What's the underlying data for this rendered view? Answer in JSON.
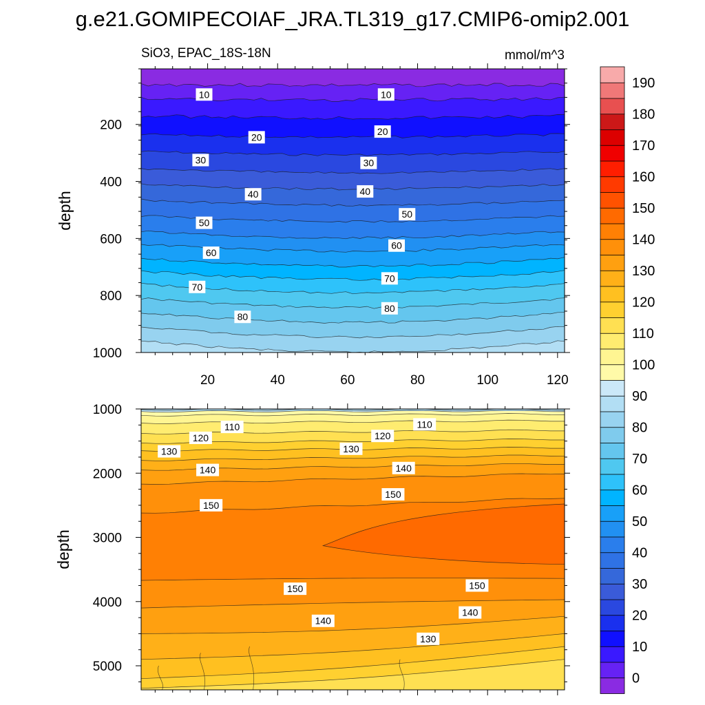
{
  "chart_data": {
    "type": "contour",
    "title": "g.e21.GOMIPECOIAF_JRA.TL319_g17.CMIP6-omip2.001",
    "subtitle_left": "SiO3, EPAC_18S-18N",
    "subtitle_right": "mmol/m^3",
    "variable": "SiO3",
    "region": "EPAC_18S-18N",
    "units": "mmol/m^3",
    "xlim": [
      1,
      122
    ],
    "x_ticks": [
      20,
      40,
      60,
      80,
      100,
      120
    ],
    "colorbar": {
      "levels": [
        0,
        5,
        10,
        15,
        20,
        25,
        30,
        35,
        40,
        45,
        50,
        55,
        60,
        65,
        70,
        75,
        80,
        85,
        90,
        95,
        100,
        105,
        110,
        115,
        120,
        125,
        130,
        135,
        140,
        145,
        150,
        155,
        160,
        165,
        170,
        175,
        180,
        185,
        190,
        195
      ],
      "colors": [
        "#8a2be2",
        "#6622f4",
        "#3a19ff",
        "#1010ff",
        "#1a30ee",
        "#2a48e0",
        "#3a5bd9",
        "#3568da",
        "#2f72e5",
        "#2a7eec",
        "#2190f2",
        "#18a0f8",
        "#00b4ff",
        "#2ec2fa",
        "#4fc8f0",
        "#64c6ee",
        "#7fcbed",
        "#98d3f0",
        "#b2def4",
        "#cbe8f8",
        "#fffaa8",
        "#fff592",
        "#ffec70",
        "#ffe052",
        "#ffd030",
        "#ffc020",
        "#ffb018",
        "#ffa010",
        "#ff900a",
        "#ff8004",
        "#ff6a00",
        "#ff5200",
        "#ff3a00",
        "#ff1e00",
        "#f00000",
        "#dc0000",
        "#cc1818",
        "#e85050",
        "#f07878",
        "#f8aaaa"
      ],
      "tick_labels": [
        0,
        10,
        20,
        30,
        40,
        50,
        60,
        70,
        80,
        90,
        100,
        110,
        120,
        130,
        140,
        150,
        160,
        170,
        180,
        190
      ]
    },
    "panels": [
      {
        "name": "upper",
        "ylabel": "depth",
        "ylim": [
          5,
          1000
        ],
        "y_ticks": [
          200,
          400,
          600,
          800,
          1000
        ],
        "x_ticks_labeled": true,
        "contour_depths": [
          {
            "level": 5,
            "depth": 60
          },
          {
            "level": 10,
            "depth": 110
          },
          {
            "level": 15,
            "depth": 170
          },
          {
            "level": 20,
            "depth": 235
          },
          {
            "level": 25,
            "depth": 295
          },
          {
            "level": 30,
            "depth": 355
          },
          {
            "level": 35,
            "depth": 410
          },
          {
            "level": 40,
            "depth": 465
          },
          {
            "level": 45,
            "depth": 520
          },
          {
            "level": 50,
            "depth": 575
          },
          {
            "level": 55,
            "depth": 620
          },
          {
            "level": 60,
            "depth": 670
          },
          {
            "level": 65,
            "depth": 715
          },
          {
            "level": 70,
            "depth": 760
          },
          {
            "level": 75,
            "depth": 810
          },
          {
            "level": 80,
            "depth": 860
          },
          {
            "level": 85,
            "depth": 910
          },
          {
            "level": 90,
            "depth": 960
          }
        ],
        "line_labels": [
          {
            "text": "10",
            "x": 19,
            "depth": 95
          },
          {
            "text": "10",
            "x": 71,
            "depth": 95
          },
          {
            "text": "20",
            "x": 34,
            "depth": 245
          },
          {
            "text": "20",
            "x": 70,
            "depth": 225
          },
          {
            "text": "30",
            "x": 18,
            "depth": 325
          },
          {
            "text": "30",
            "x": 66,
            "depth": 335
          },
          {
            "text": "40",
            "x": 33,
            "depth": 445
          },
          {
            "text": "40",
            "x": 65,
            "depth": 435
          },
          {
            "text": "50",
            "x": 19,
            "depth": 545
          },
          {
            "text": "50",
            "x": 77,
            "depth": 515
          },
          {
            "text": "60",
            "x": 21,
            "depth": 650
          },
          {
            "text": "60",
            "x": 74,
            "depth": 625
          },
          {
            "text": "70",
            "x": 17,
            "depth": 770
          },
          {
            "text": "70",
            "x": 72,
            "depth": 740
          },
          {
            "text": "80",
            "x": 30,
            "depth": 875
          },
          {
            "text": "80",
            "x": 72,
            "depth": 845
          }
        ]
      },
      {
        "name": "lower",
        "ylabel": "depth",
        "ylim": [
          1000,
          5375
        ],
        "y_ticks": [
          1000,
          2000,
          3000,
          4000,
          5000
        ],
        "x_ticks_labeled": false,
        "line_labels": [
          {
            "text": "110",
            "x": 27,
            "depth": 1280
          },
          {
            "text": "110",
            "x": 82,
            "depth": 1240
          },
          {
            "text": "120",
            "x": 18,
            "depth": 1450
          },
          {
            "text": "120",
            "x": 70,
            "depth": 1420
          },
          {
            "text": "130",
            "x": 9,
            "depth": 1660
          },
          {
            "text": "130",
            "x": 61,
            "depth": 1620
          },
          {
            "text": "140",
            "x": 20,
            "depth": 1950
          },
          {
            "text": "140",
            "x": 76,
            "depth": 1920
          },
          {
            "text": "150",
            "x": 21,
            "depth": 2500
          },
          {
            "text": "150",
            "x": 73,
            "depth": 2330
          },
          {
            "text": "150",
            "x": 45,
            "depth": 3800
          },
          {
            "text": "150",
            "x": 97,
            "depth": 3750
          },
          {
            "text": "140",
            "x": 53,
            "depth": 4300
          },
          {
            "text": "140",
            "x": 95,
            "depth": 4170
          },
          {
            "text": "130",
            "x": 83,
            "depth": 4580
          }
        ]
      }
    ]
  }
}
